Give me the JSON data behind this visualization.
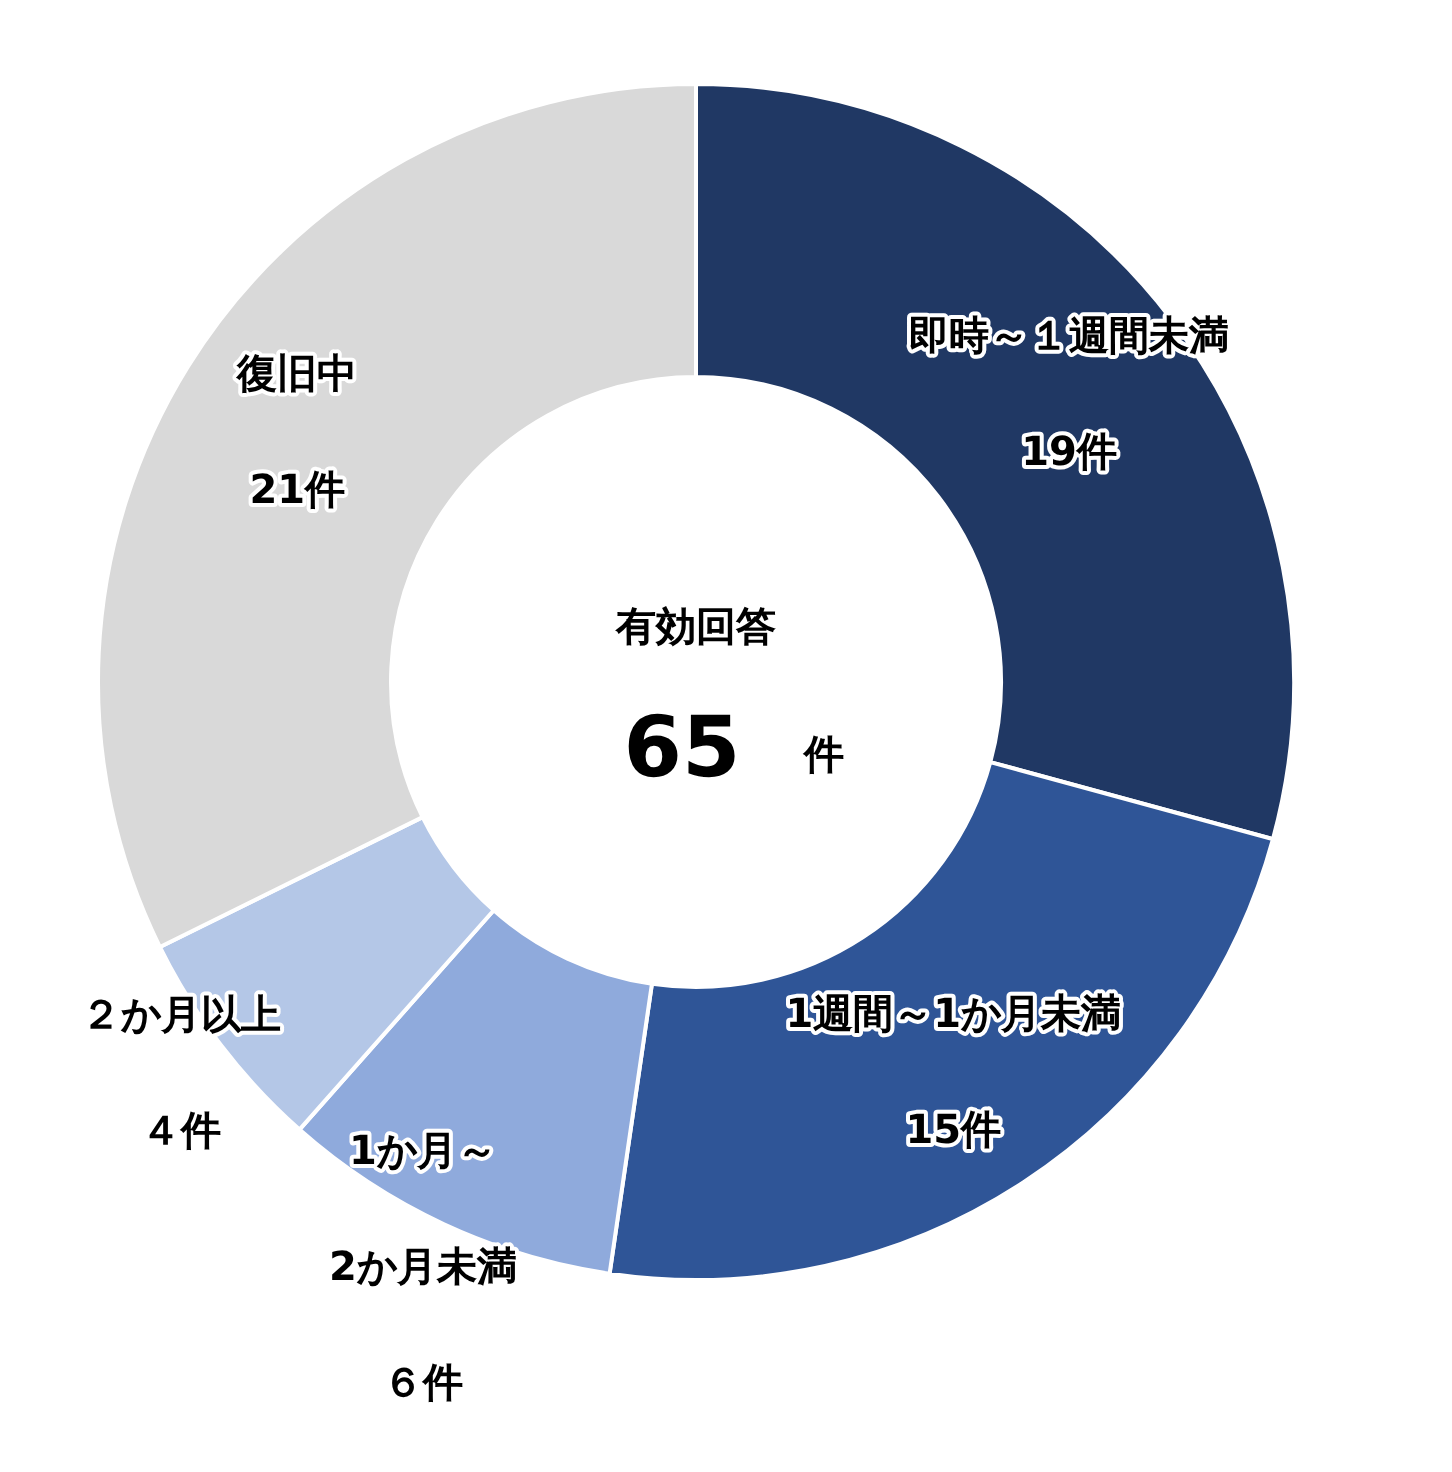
{
  "chart_data": {
    "type": "donut",
    "categories": [
      "即時～１週間未満",
      "1週間～1か月未満",
      "1か月～2か月未満",
      "２か月以上",
      "復旧中"
    ],
    "values": [
      19,
      15,
      6,
      4,
      21
    ],
    "colors": [
      "#203864",
      "#2f5597",
      "#8faadc",
      "#b4c7e7",
      "#d9d9d9"
    ],
    "value_labels": [
      "19件",
      "15件",
      "６件",
      "４件",
      "21件"
    ],
    "annotations": [
      "有効回答",
      "65",
      "件"
    ]
  }
}
